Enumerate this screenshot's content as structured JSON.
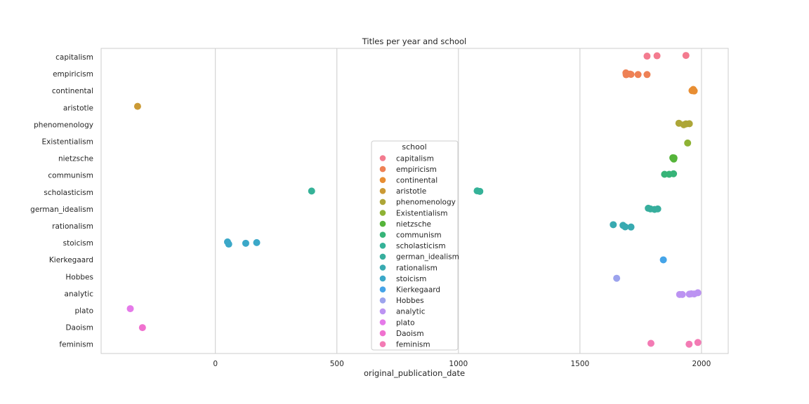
{
  "chart_data": {
    "type": "scatter",
    "title": "Titles per year and school",
    "xlabel": "original_publication_date",
    "ylabel": "",
    "xlim": [
      -470,
      2110
    ],
    "xticks": [
      0,
      500,
      1000,
      1500,
      2000
    ],
    "grid": "vertical",
    "legend": {
      "title": "school",
      "placement": "center"
    },
    "categories": [
      "capitalism",
      "empiricism",
      "continental",
      "aristotle",
      "phenomenology",
      "Existentialism",
      "nietzsche",
      "communism",
      "scholasticism",
      "german_idealism",
      "rationalism",
      "stoicism",
      "Kierkegaard",
      "Hobbes",
      "analytic",
      "plato",
      "Daoism",
      "feminism"
    ],
    "series": [
      {
        "name": "capitalism",
        "color": "#f37b8f",
        "points": [
          [
            1776,
            -0.04
          ],
          [
            1817,
            -0.06
          ],
          [
            1936,
            -0.08
          ]
        ]
      },
      {
        "name": "empiricism",
        "color": "#ee8155",
        "points": [
          [
            1689,
            -0.05
          ],
          [
            1690,
            0.06
          ],
          [
            1706,
            0.02
          ],
          [
            1710,
            0.04
          ],
          [
            1739,
            0.05
          ],
          [
            1776,
            0.05
          ]
        ]
      },
      {
        "name": "continental",
        "color": "#e88e33",
        "points": [
          [
            1961,
            0.0
          ],
          [
            1966,
            -0.07
          ],
          [
            1970,
            0.02
          ]
        ]
      },
      {
        "name": "aristotle",
        "color": "#cb9a35",
        "points": [
          [
            -320,
            -0.07
          ]
        ]
      },
      {
        "name": "phenomenology",
        "color": "#ada638",
        "points": [
          [
            1907,
            -0.07
          ],
          [
            1927,
            0.02
          ],
          [
            1936,
            -0.03
          ],
          [
            1950,
            -0.04
          ]
        ]
      },
      {
        "name": "Existentialism",
        "color": "#8eb234",
        "points": [
          [
            1943,
            0.1
          ]
        ]
      },
      {
        "name": "nietzsche",
        "color": "#55b43a",
        "points": [
          [
            1882,
            -0.03
          ],
          [
            1883,
            0.0
          ],
          [
            1886,
            0.05
          ],
          [
            1887,
            -0.02
          ]
        ]
      },
      {
        "name": "communism",
        "color": "#36b478",
        "points": [
          [
            1848,
            -0.05
          ],
          [
            1867,
            -0.05
          ],
          [
            1885,
            -0.08
          ]
        ]
      },
      {
        "name": "scholasticism",
        "color": "#35b298",
        "points": [
          [
            396,
            -0.06
          ],
          [
            1077,
            -0.07
          ],
          [
            1088,
            -0.04
          ]
        ]
      },
      {
        "name": "german_idealism",
        "color": "#37ae9d",
        "points": [
          [
            1781,
            -0.04
          ],
          [
            1790,
            0.0
          ],
          [
            1807,
            0.03
          ],
          [
            1820,
            0.0
          ]
        ]
      },
      {
        "name": "rationalism",
        "color": "#38aab1",
        "points": [
          [
            1637,
            -0.07
          ],
          [
            1677,
            -0.03
          ],
          [
            1686,
            0.06
          ],
          [
            1710,
            0.07
          ]
        ]
      },
      {
        "name": "stoicism",
        "color": "#3ba8c8",
        "points": [
          [
            50,
            -0.05
          ],
          [
            55,
            0.08
          ],
          [
            125,
            0.03
          ],
          [
            170,
            -0.01
          ]
        ]
      },
      {
        "name": "Kierkegaard",
        "color": "#45a4e8",
        "points": [
          [
            1843,
            0.01
          ]
        ]
      },
      {
        "name": "Hobbes",
        "color": "#9ca3ed",
        "points": [
          [
            1651,
            0.1
          ]
        ]
      },
      {
        "name": "analytic",
        "color": "#bc93f2",
        "points": [
          [
            1910,
            0.06
          ],
          [
            1921,
            0.06
          ],
          [
            1950,
            0.04
          ],
          [
            1958,
            0.02
          ],
          [
            1970,
            0.03
          ],
          [
            1985,
            -0.04
          ]
        ]
      },
      {
        "name": "plato",
        "color": "#e57ae9",
        "points": [
          [
            -350,
            -0.1
          ]
        ]
      },
      {
        "name": "Daoism",
        "color": "#f071cf",
        "points": [
          [
            -300,
            0.02
          ]
        ]
      },
      {
        "name": "feminism",
        "color": "#f37bb4",
        "points": [
          [
            1792,
            -0.05
          ],
          [
            1949,
            0.0
          ],
          [
            1985,
            -0.1
          ]
        ]
      }
    ]
  }
}
